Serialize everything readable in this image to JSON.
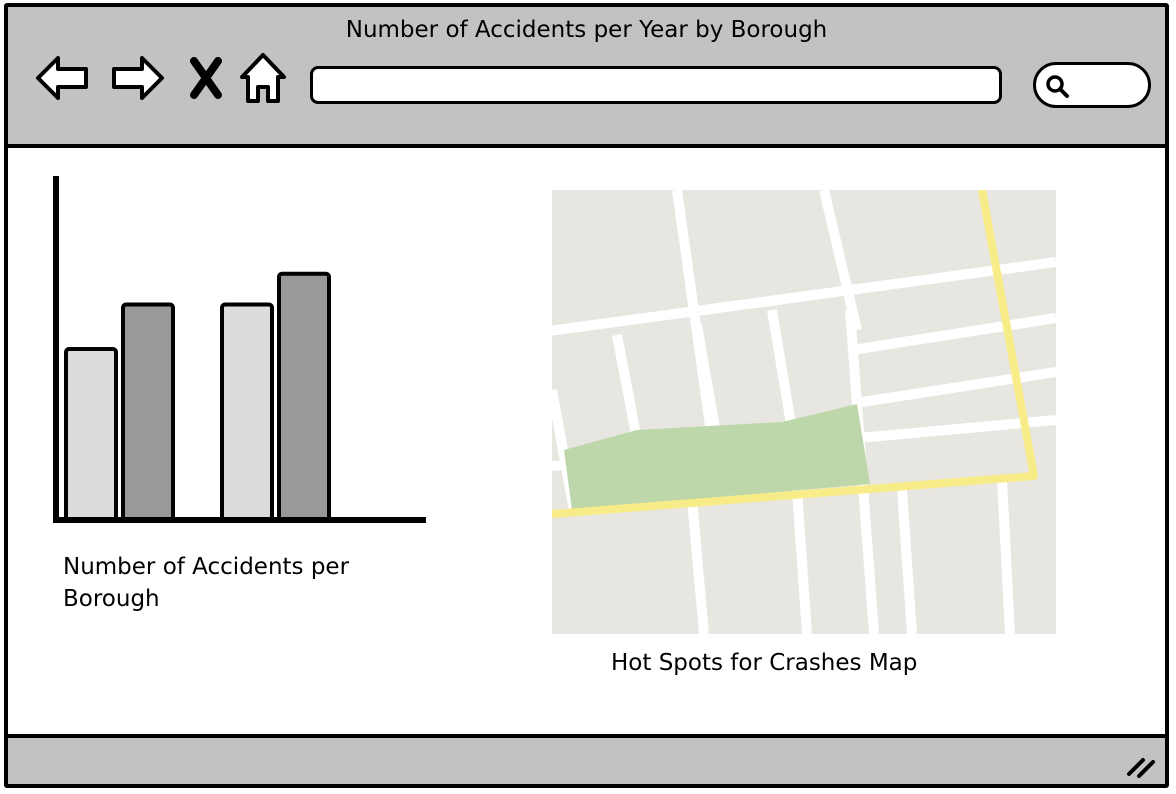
{
  "window": {
    "title": "Number of Accidents per Year by Borough"
  },
  "toolbar": {
    "back_icon": "back-arrow-icon",
    "forward_icon": "forward-arrow-icon",
    "stop_icon": "close-x-icon",
    "home_icon": "home-icon",
    "address_value": "",
    "search_icon": "search-icon",
    "search_value": ""
  },
  "chart_data": {
    "type": "bar",
    "categories": [
      "",
      ""
    ],
    "series": [
      {
        "values": [
          5,
          6.3
        ],
        "color": "#dcdcdc"
      },
      {
        "values": [
          6.3,
          7.2
        ],
        "color": "#999999"
      }
    ],
    "ylim": [
      0,
      10
    ],
    "title": "",
    "xlabel": "",
    "ylabel": "",
    "grid": false,
    "caption": "Number of Accidents per Borough"
  },
  "map": {
    "caption": "Hot Spots for Crashes Map",
    "colors": {
      "land": "#e8e6e0",
      "road": "#ffffff",
      "highlight_road": "#f8ec88",
      "park": "#bdd6aa"
    }
  },
  "statusbar": {
    "grip_icon": "resize-grip-icon"
  }
}
